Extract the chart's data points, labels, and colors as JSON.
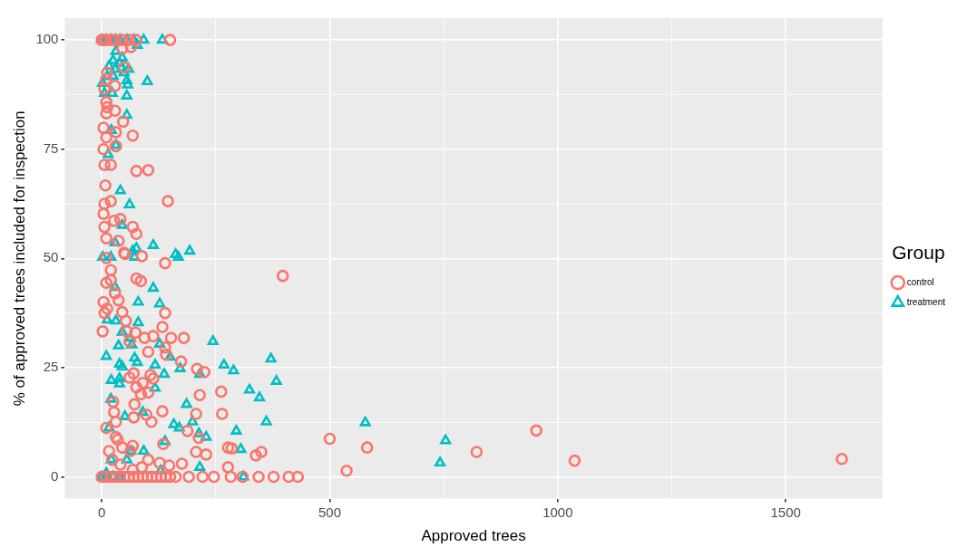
{
  "chart_data": {
    "type": "scatter",
    "xlabel": "Approved trees",
    "ylabel": "% of approved trees included for inspection",
    "legend_title": "Group",
    "legend": "right",
    "grid": true,
    "xlim": [
      -81,
      1712
    ],
    "ylim": [
      -5,
      105
    ],
    "xticks": [
      0,
      {
        "value": 250,
        "label": null
      },
      500,
      {
        "value": 750,
        "label": null
      },
      1000,
      {
        "value": 1250,
        "label": null
      },
      1500
    ],
    "yticks": [
      0,
      {
        "value": 12.5,
        "label": null
      },
      25,
      {
        "value": 37.5,
        "label": null
      },
      50,
      {
        "value": 62.5,
        "label": null
      },
      75,
      {
        "value": 87.5,
        "label": null
      },
      100
    ],
    "series": [
      {
        "name": "control",
        "color": "#f8766d",
        "marker": "circle",
        "x": [
          150,
          0,
          5,
          10,
          20,
          30,
          45,
          60,
          75,
          45,
          64,
          49,
          12,
          10,
          29,
          6,
          10,
          12,
          29,
          10,
          47,
          4,
          31,
          68,
          10,
          4,
          31,
          6,
          20,
          76,
          102,
          8,
          6,
          20,
          145,
          4,
          27,
          41,
          6,
          68,
          76,
          10,
          37,
          49,
          10,
          51,
          88,
          139,
          20,
          10,
          20,
          76,
          86,
          29,
          37,
          4,
          12,
          6,
          45,
          53,
          139,
          2,
          55,
          74,
          94,
          113,
          152,
          180,
          133,
          61,
          102,
          139,
          141,
          174,
          209,
          225,
          70,
          61,
          107,
          113,
          90,
          76,
          86,
          102,
          215,
          262,
          25,
          72,
          27,
          133,
          207,
          264,
          98,
          70,
          109,
          31,
          10,
          188,
          31,
          35,
          213,
          135,
          45,
          68,
          277,
          285,
          16,
          63,
          207,
          229,
          23,
          41,
          102,
          127,
          148,
          176,
          68,
          88,
          277,
          338,
          350,
          500,
          582,
          537,
          397,
          822,
          953,
          1037,
          1623,
          0,
          10,
          20,
          30,
          40,
          50,
          60,
          70,
          80,
          90,
          100,
          110,
          120,
          130,
          140,
          150,
          162,
          191,
          221,
          246,
          283,
          309,
          344,
          377,
          410,
          430
        ],
        "values": [
          100,
          100,
          100,
          100,
          100,
          100,
          100,
          100,
          100,
          98,
          98.4,
          93.7,
          92.5,
          91,
          89.5,
          88.8,
          85.8,
          84.6,
          83.8,
          83.2,
          81.3,
          79.9,
          78.9,
          78.1,
          77.7,
          75,
          75.7,
          71.4,
          71.4,
          70,
          70.2,
          66.7,
          62.5,
          63.1,
          63.1,
          60.2,
          58.6,
          59,
          57.2,
          57.2,
          55.6,
          54.6,
          54,
          51.3,
          50.1,
          51,
          50.5,
          48.9,
          47.3,
          44.4,
          45,
          45.4,
          44.8,
          42,
          40.4,
          40,
          38.5,
          37.5,
          37.7,
          35.7,
          37.5,
          33.3,
          33.3,
          33,
          31.8,
          32.2,
          31.8,
          31.8,
          34.3,
          31,
          28.6,
          29.6,
          28,
          26.4,
          24.7,
          24,
          23.7,
          22.7,
          23.3,
          22.5,
          21.5,
          20.5,
          18.9,
          19.3,
          18.7,
          19.5,
          17.2,
          16.6,
          14.8,
          15,
          14.4,
          14.4,
          14.2,
          13.6,
          12.6,
          12.6,
          11.2,
          10.5,
          9.1,
          8.5,
          8.9,
          7.5,
          6.7,
          7.1,
          6.7,
          6.5,
          5.9,
          5.9,
          5.7,
          5.1,
          3.9,
          2.8,
          3.9,
          3.2,
          2.6,
          3,
          1.6,
          2.2,
          2.2,
          4.9,
          5.7,
          8.7,
          6.7,
          1.4,
          46,
          5.7,
          10.6,
          3.7,
          4.1,
          0,
          0,
          0,
          0,
          0,
          0,
          0,
          0,
          0,
          0,
          0,
          0,
          0,
          0,
          0,
          0,
          0,
          0,
          0,
          0,
          0,
          0,
          0,
          0,
          0,
          0
        ]
      },
      {
        "name": "treatment",
        "color": "#00bfc4",
        "marker": "triangle",
        "x": [
          0,
          10,
          20,
          30,
          40,
          55,
          70,
          92,
          133,
          78,
          31,
          45,
          25,
          39,
          16,
          59,
          29,
          49,
          12,
          25,
          55,
          100,
          2,
          57,
          6,
          23,
          55,
          55,
          21,
          31,
          14,
          41,
          61,
          45,
          29,
          76,
          113,
          68,
          2,
          20,
          72,
          162,
          168,
          193,
          29,
          113,
          80,
          127,
          12,
          31,
          80,
          45,
          63,
          66,
          37,
          127,
          244,
          10,
          150,
          78,
          72,
          39,
          45,
          117,
          172,
          268,
          289,
          137,
          39,
          21,
          39,
          215,
          117,
          20,
          90,
          186,
          51,
          158,
          170,
          199,
          16,
          213,
          229,
          139,
          64,
          92,
          55,
          21,
          215,
          10,
          129,
          371,
          383,
          324,
          346,
          361,
          295,
          305,
          578,
          754,
          742,
          0,
          10,
          25,
          40,
          311
        ],
        "values": [
          100,
          100,
          100,
          100,
          100,
          100,
          100,
          100,
          100,
          98.8,
          97.4,
          95.9,
          95.3,
          94.7,
          94,
          93.3,
          93.3,
          92.5,
          91.7,
          91.7,
          90.7,
          90.5,
          90.1,
          89.7,
          87.8,
          87.8,
          87.2,
          82.8,
          79.3,
          75.9,
          73.8,
          65.5,
          62.3,
          57.6,
          53.6,
          52.3,
          53,
          51.7,
          50.3,
          50.3,
          50.3,
          50.9,
          50.3,
          51.7,
          43.4,
          43.2,
          40,
          39.6,
          35.9,
          35.7,
          35.3,
          33.1,
          31.8,
          30.2,
          30,
          30.4,
          31,
          27.6,
          27.4,
          26.2,
          27.2,
          25.8,
          25.2,
          25.6,
          24.8,
          25.6,
          24.3,
          23.5,
          22.5,
          22.1,
          21.3,
          23.5,
          20.3,
          17.8,
          14.8,
          16.6,
          13.8,
          12,
          11.2,
          12.6,
          11.2,
          9.9,
          9.1,
          8.1,
          5.9,
          5.9,
          3.9,
          3.9,
          2.2,
          0.8,
          1.4,
          27,
          21.9,
          19.9,
          18.1,
          12.6,
          10.5,
          6.3,
          12.4,
          8.3,
          3.2,
          0,
          0,
          0,
          0,
          0
        ]
      }
    ]
  }
}
